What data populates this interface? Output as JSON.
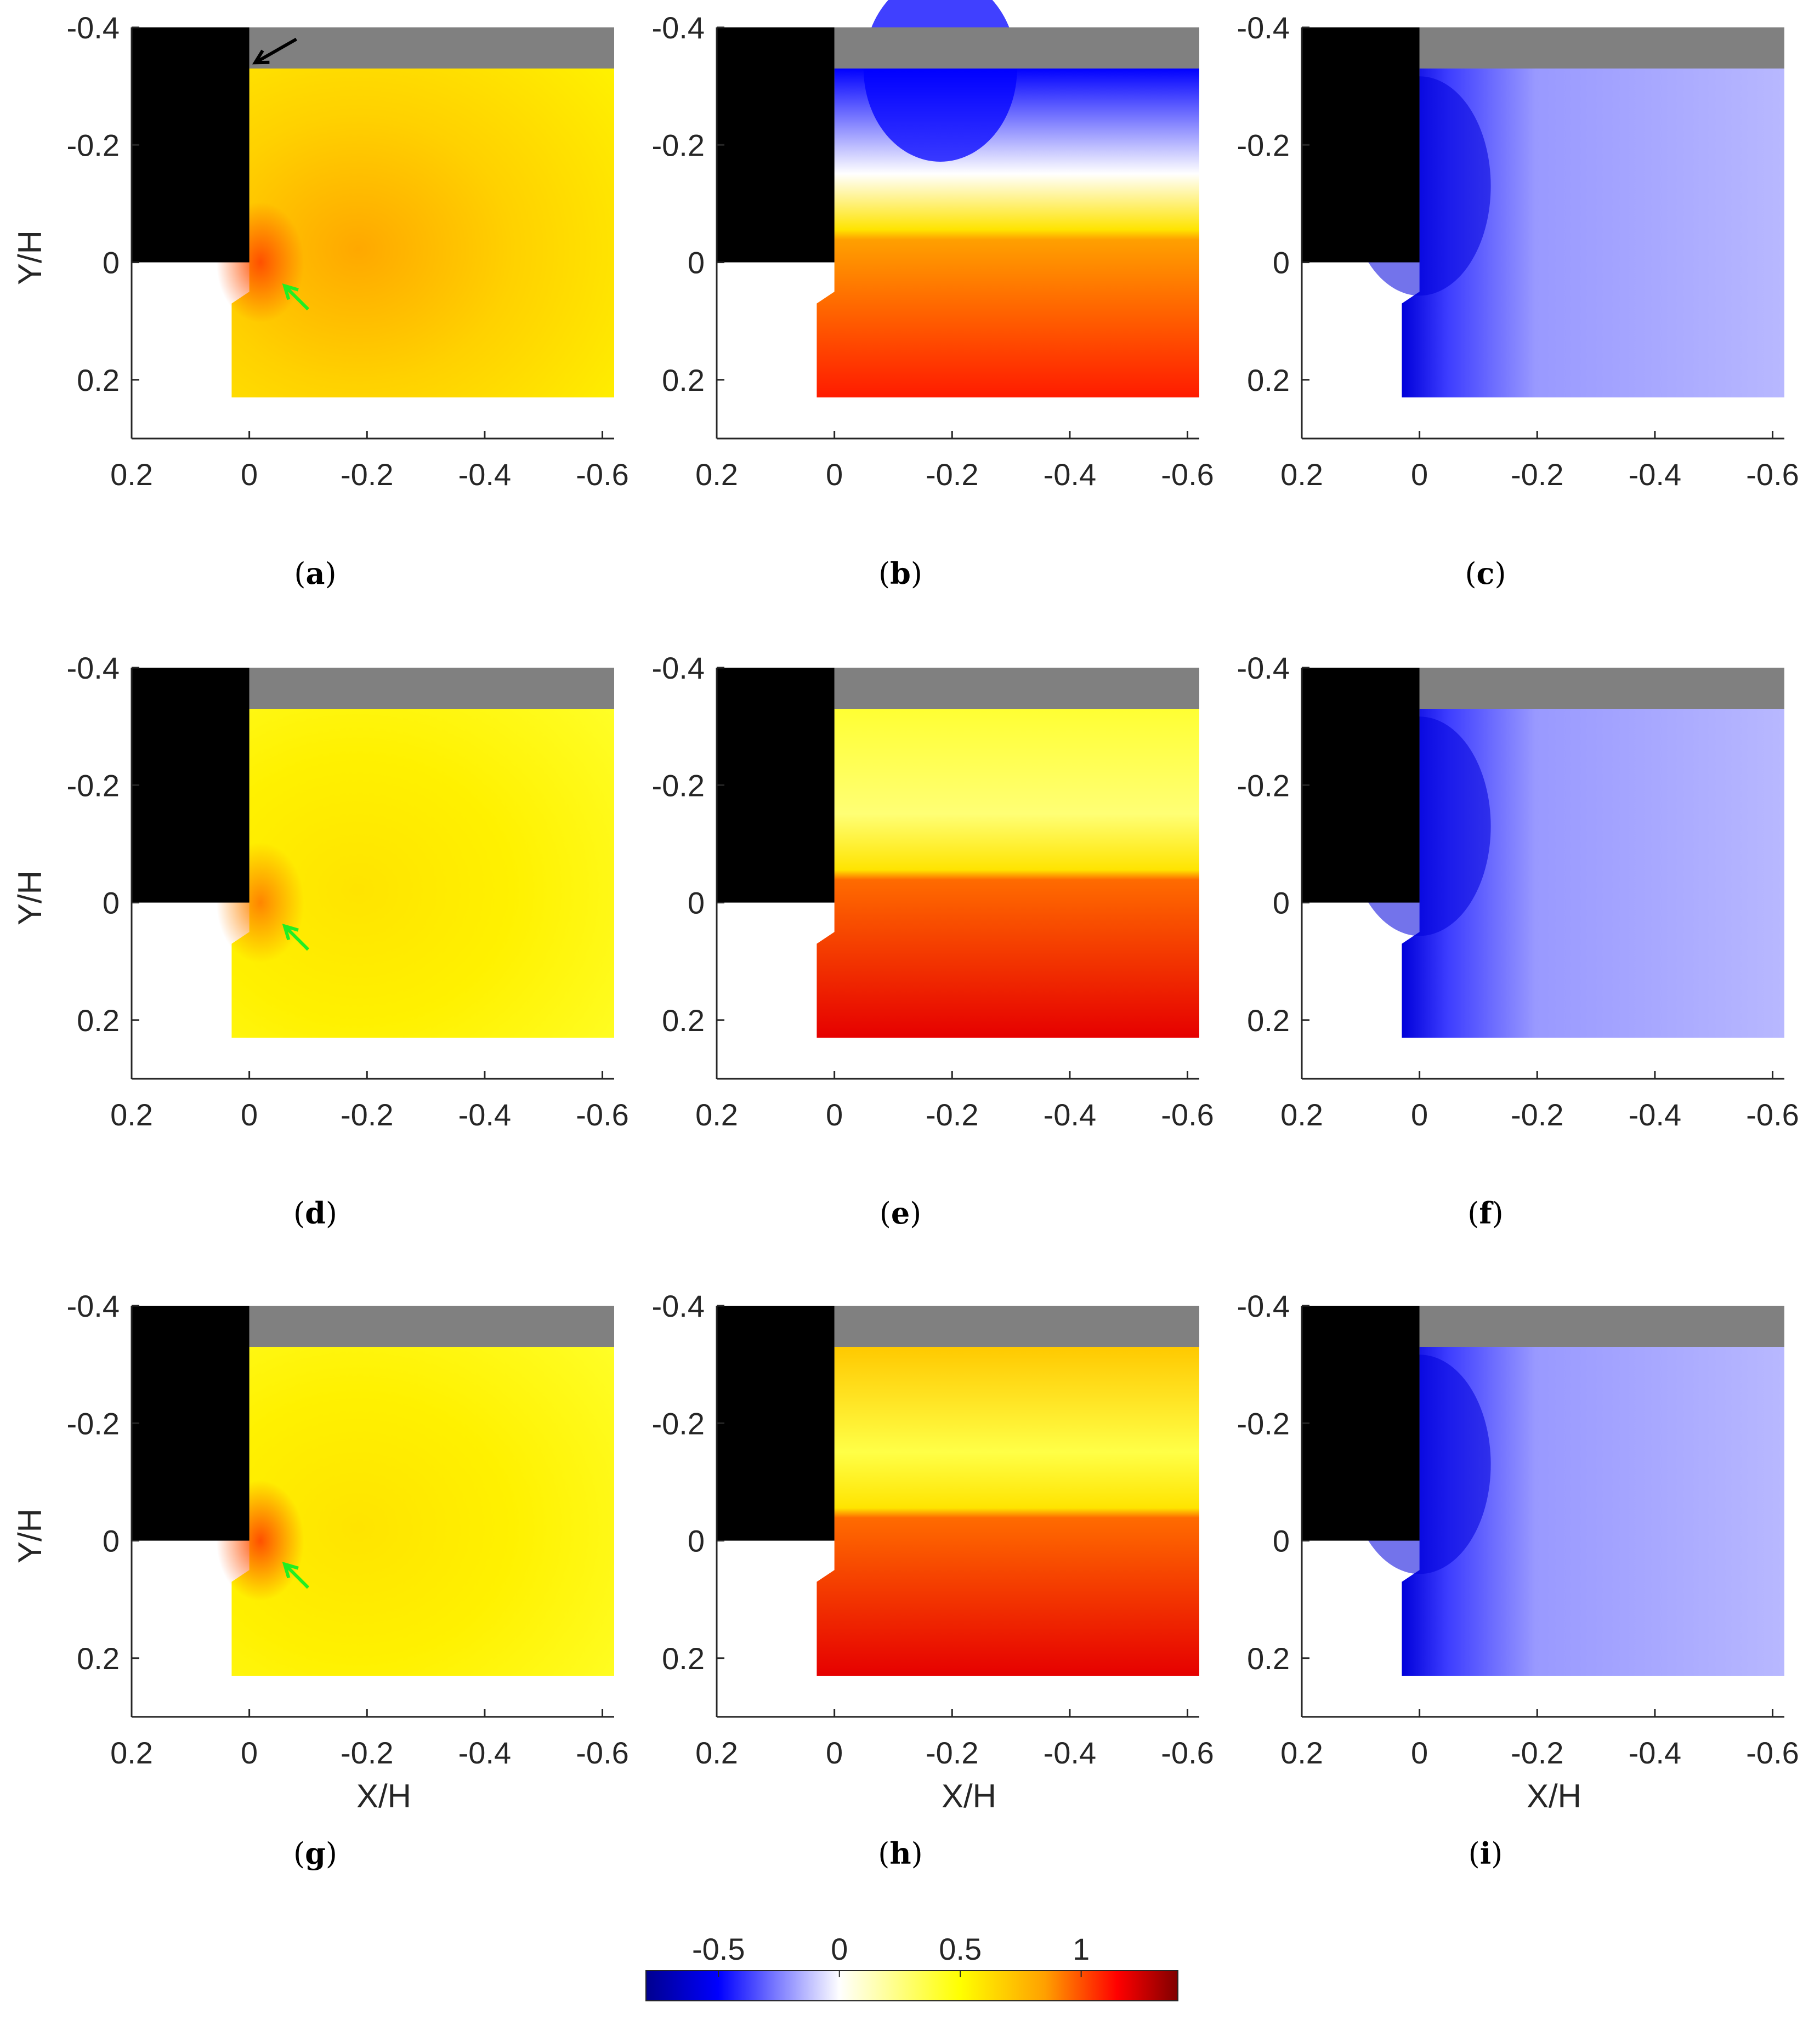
{
  "chart_data": [
    {
      "id": "a",
      "type": "contour",
      "caption": "a",
      "xlabel": "",
      "ylabel": "Y/H",
      "xlim": [
        0.2,
        -0.62
      ],
      "ylim": [
        0.3,
        -0.4
      ],
      "xticks": [
        "0.2",
        "0",
        "-0.2",
        "-0.4",
        "-0.6"
      ],
      "yticks": [
        "-0.4",
        "-0.2",
        "0",
        "0.2"
      ],
      "field": "yellow",
      "hotspot": [
        0.0,
        0.0,
        1.0
      ],
      "arrows": [
        "black",
        "green"
      ]
    },
    {
      "id": "b",
      "type": "contour",
      "caption": "b",
      "xlabel": "",
      "ylabel": "",
      "xlim": [
        0.2,
        -0.62
      ],
      "ylim": [
        0.3,
        -0.4
      ],
      "xticks": [
        "0.2",
        "0",
        "-0.2",
        "-0.4",
        "-0.6"
      ],
      "yticks": [
        "-0.4",
        "-0.2",
        "0",
        "0.2"
      ],
      "field": "split-blue-top",
      "top_value": -0.5,
      "bottom_value": 1.2,
      "arrows": []
    },
    {
      "id": "c",
      "type": "contour",
      "caption": "c",
      "xlabel": "",
      "ylabel": "",
      "xlim": [
        0.2,
        -0.62
      ],
      "ylim": [
        0.3,
        -0.4
      ],
      "xticks": [
        "0.2",
        "0",
        "-0.2",
        "-0.4",
        "-0.6"
      ],
      "yticks": [
        "-0.4",
        "-0.2",
        "0",
        "0.2"
      ],
      "field": "blue",
      "arrows": []
    },
    {
      "id": "d",
      "type": "contour",
      "caption": "d",
      "xlabel": "",
      "ylabel": "Y/H",
      "xlim": [
        0.2,
        -0.62
      ],
      "ylim": [
        0.3,
        -0.4
      ],
      "xticks": [
        "0.2",
        "0",
        "-0.2",
        "-0.4",
        "-0.6"
      ],
      "yticks": [
        "-0.4",
        "-0.2",
        "0",
        "0.2"
      ],
      "field": "yellow-light",
      "hotspot": [
        0.0,
        0.0,
        0.9
      ],
      "arrows": [
        "green"
      ]
    },
    {
      "id": "e",
      "type": "contour",
      "caption": "e",
      "xlabel": "",
      "ylabel": "",
      "xlim": [
        0.2,
        -0.62
      ],
      "ylim": [
        0.3,
        -0.4
      ],
      "xticks": [
        "0.2",
        "0",
        "-0.2",
        "-0.4",
        "-0.6"
      ],
      "yticks": [
        "-0.4",
        "-0.2",
        "0",
        "0.2"
      ],
      "field": "split-yellow-top",
      "top_value": 0.4,
      "bottom_value": 1.3,
      "arrows": []
    },
    {
      "id": "f",
      "type": "contour",
      "caption": "f",
      "xlabel": "",
      "ylabel": "",
      "xlim": [
        0.2,
        -0.62
      ],
      "ylim": [
        0.3,
        -0.4
      ],
      "xticks": [
        "0.2",
        "0",
        "-0.2",
        "-0.4",
        "-0.6"
      ],
      "yticks": [
        "-0.4",
        "-0.2",
        "0",
        "0.2"
      ],
      "field": "blue",
      "arrows": []
    },
    {
      "id": "g",
      "type": "contour",
      "caption": "g",
      "xlabel": "X/H",
      "ylabel": "Y/H",
      "xlim": [
        0.2,
        -0.62
      ],
      "ylim": [
        0.3,
        -0.4
      ],
      "xticks": [
        "0.2",
        "0",
        "-0.2",
        "-0.4",
        "-0.6"
      ],
      "yticks": [
        "-0.4",
        "-0.2",
        "0",
        "0.2"
      ],
      "field": "yellow-light",
      "hotspot": [
        0.0,
        0.0,
        1.0
      ],
      "arrows": [
        "green"
      ]
    },
    {
      "id": "h",
      "type": "contour",
      "caption": "h",
      "xlabel": "X/H",
      "ylabel": "",
      "xlim": [
        0.2,
        -0.62
      ],
      "ylim": [
        0.3,
        -0.4
      ],
      "xticks": [
        "0.2",
        "0",
        "-0.2",
        "-0.4",
        "-0.6"
      ],
      "yticks": [
        "-0.4",
        "-0.2",
        "0",
        "0.2"
      ],
      "field": "split-orange-top",
      "top_value": 0.7,
      "bottom_value": 1.3,
      "arrows": []
    },
    {
      "id": "i",
      "type": "contour",
      "caption": "i",
      "xlabel": "X/H",
      "ylabel": "",
      "xlim": [
        0.2,
        -0.62
      ],
      "ylim": [
        0.3,
        -0.4
      ],
      "xticks": [
        "0.2",
        "0",
        "-0.2",
        "-0.4",
        "-0.6"
      ],
      "yticks": [
        "-0.4",
        "-0.2",
        "0",
        "0.2"
      ],
      "field": "blue",
      "arrows": []
    }
  ],
  "colorbar": {
    "range": [
      -0.8,
      1.4
    ],
    "ticks": [
      {
        "value": -0.5,
        "label": "-0.5"
      },
      {
        "value": 0,
        "label": "0"
      },
      {
        "value": 0.5,
        "label": "0.5"
      },
      {
        "value": 1,
        "label": "1"
      }
    ],
    "colors": [
      "#00008f",
      "#0000ff",
      "#ffffff",
      "#ffff00",
      "#ffa000",
      "#ff0000",
      "#800000"
    ]
  }
}
